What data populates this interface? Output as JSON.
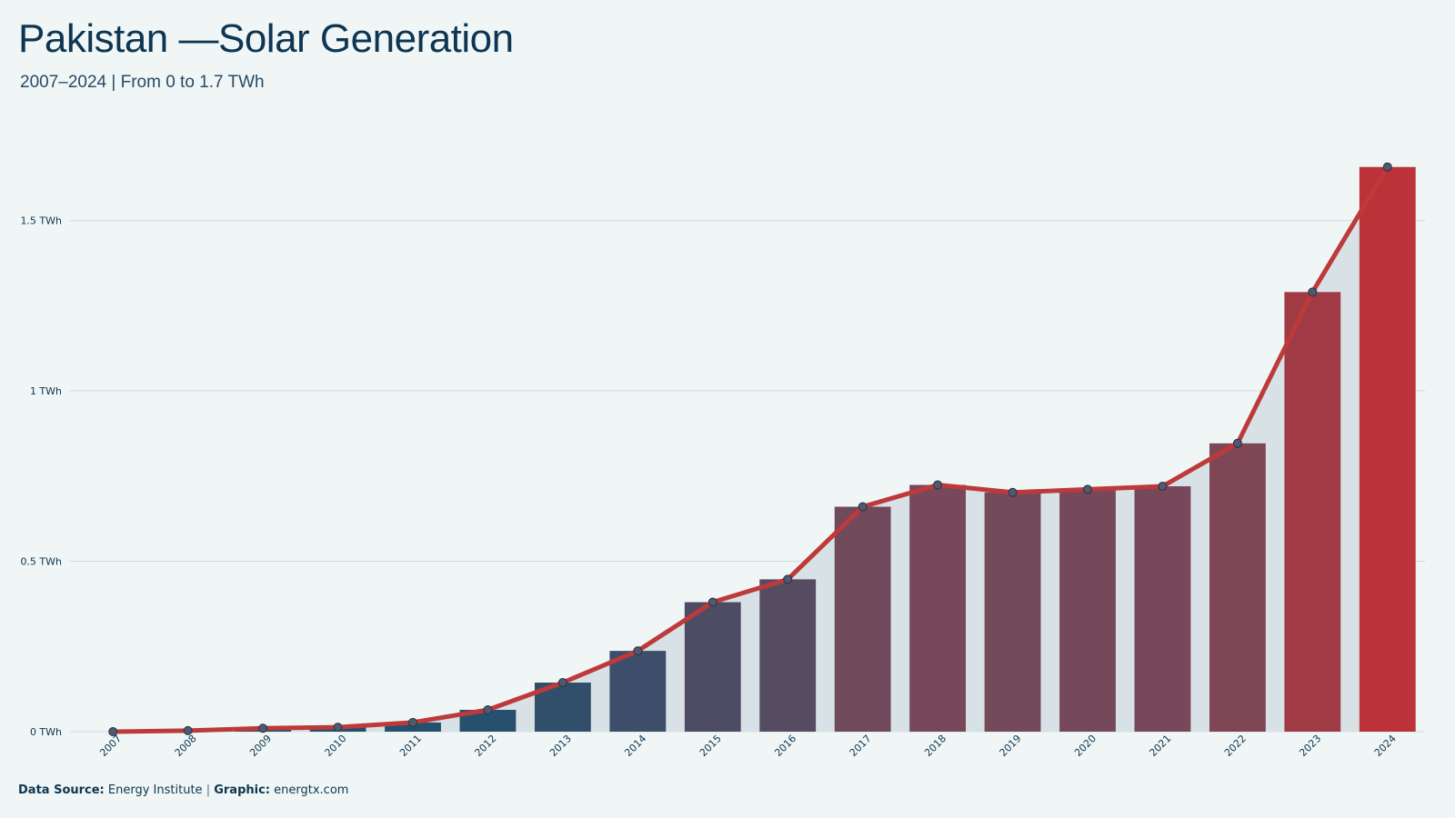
{
  "header": {
    "title": "Pakistan —Solar Generation",
    "subtitle": "2007–2024 | From 0 to 1.7 TWh"
  },
  "footer": {
    "source_label": "Data Source:",
    "source_value": "Energy Institute",
    "separator": "|",
    "graphic_label": "Graphic:",
    "graphic_value": "energtx.com"
  },
  "chart_data": {
    "type": "bar",
    "categories": [
      "2007",
      "2008",
      "2009",
      "2010",
      "2011",
      "2012",
      "2013",
      "2014",
      "2015",
      "2016",
      "2017",
      "2018",
      "2019",
      "2020",
      "2021",
      "2022",
      "2023",
      "2024"
    ],
    "values": [
      0.0,
      0.003,
      0.01,
      0.013,
      0.027,
      0.064,
      0.144,
      0.237,
      0.38,
      0.447,
      0.66,
      0.724,
      0.702,
      0.711,
      0.72,
      0.846,
      1.29,
      1.657
    ],
    "overlay": "line with markers and shaded area",
    "ylim": [
      0,
      1.7
    ],
    "yticks": [
      {
        "value": 0,
        "label": "0 TWh"
      },
      {
        "value": 0.5,
        "label": "0.5 TWh"
      },
      {
        "value": 1,
        "label": "1 TWh"
      },
      {
        "value": 1.5,
        "label": "1.5 TWh"
      }
    ],
    "xlabel": "",
    "ylabel": "",
    "grid": true,
    "colors": {
      "bar_start": "#1f5070",
      "bar_mid": "#74495a",
      "bar_end": "#bb3338",
      "line": "#be3a3a",
      "marker_fill": "#4e5a70",
      "marker_stroke": "#2a2f40",
      "area": "#d8e2e6",
      "grid": "#cfdcdf"
    }
  }
}
